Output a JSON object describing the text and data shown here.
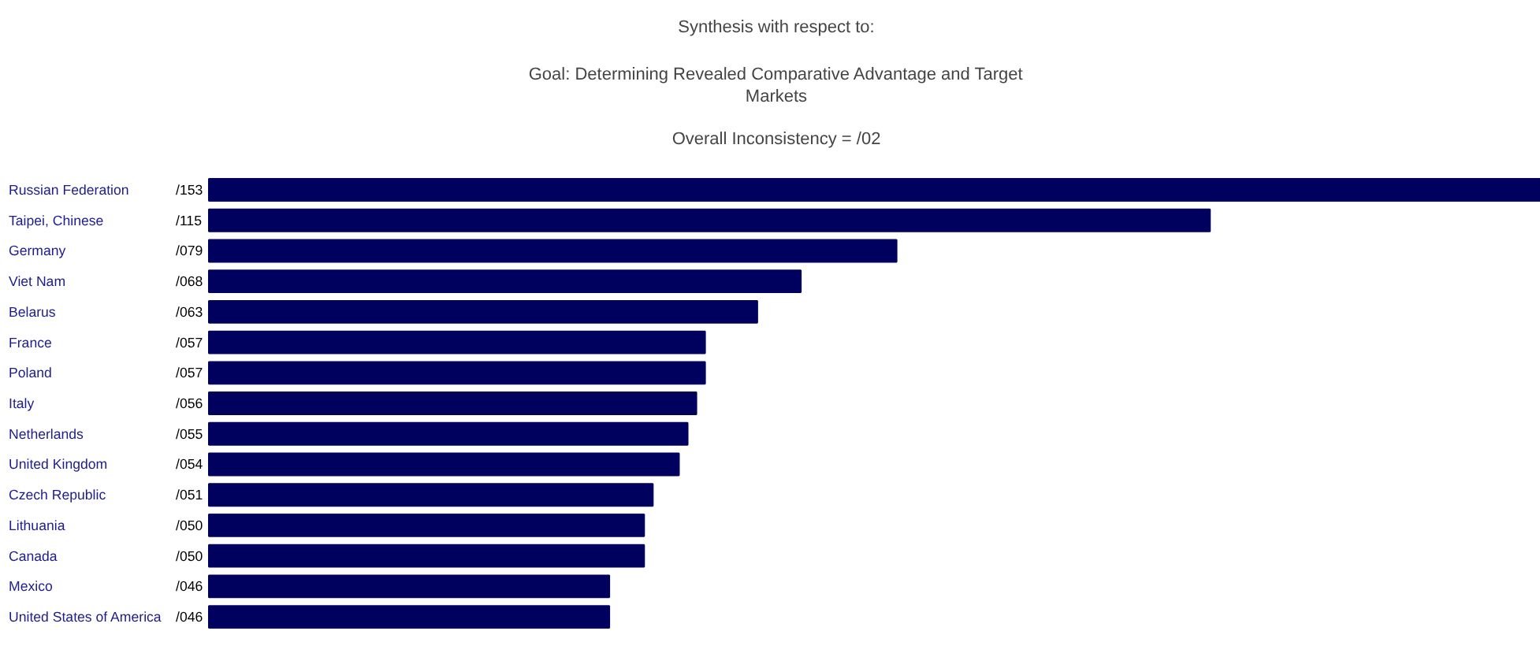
{
  "chart_data": {
    "type": "bar",
    "orientation": "horizontal",
    "title": "Synthesis with respect to:",
    "subtitle": "Goal: Determining Revealed Comparative Advantage and Target Markets",
    "annotations": [
      "Overall Inconsistency = /02"
    ],
    "categories": [
      "Russian Federation",
      "Taipei, Chinese",
      "Germany",
      "Viet Nam",
      "Belarus",
      "France",
      "Poland",
      "Italy",
      "Netherlands",
      "United Kingdom",
      "Czech Republic",
      "Lithuania",
      "Canada",
      "Mexico",
      "United States of America"
    ],
    "values": [
      153,
      115,
      79,
      68,
      63,
      57,
      57,
      56,
      55,
      54,
      51,
      50,
      50,
      46,
      46
    ],
    "value_labels": [
      "/153",
      "/115",
      "/079",
      "/068",
      "/063",
      "/057",
      "/057",
      "/056",
      "/055",
      "/054",
      "/051",
      "/050",
      "/050",
      "/046",
      "/046"
    ],
    "color": "#00005e",
    "grid": false
  }
}
